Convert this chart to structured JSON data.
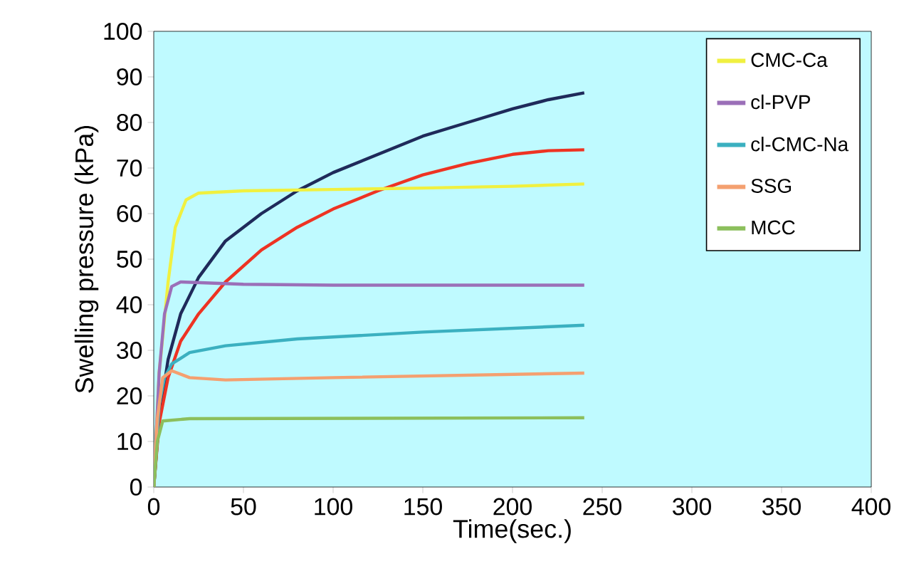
{
  "chart_data": {
    "type": "line",
    "xlabel": "Time(sec.)",
    "ylabel": "Swelling pressure (kPa)",
    "xlim": [
      0,
      400
    ],
    "ylim": [
      0,
      100
    ],
    "xticks": [
      0,
      50,
      100,
      150,
      200,
      250,
      300,
      350,
      400
    ],
    "yticks": [
      0,
      10,
      20,
      30,
      40,
      50,
      60,
      70,
      80,
      90,
      100
    ],
    "legend": "top right",
    "marker": "none",
    "line_style": "solid",
    "series": [
      {
        "color": "#1f2a5a",
        "x": [
          0,
          3,
          8,
          15,
          25,
          40,
          60,
          80,
          100,
          125,
          150,
          175,
          200,
          220,
          240
        ],
        "values": [
          0,
          15,
          28,
          38,
          46,
          54,
          60,
          65,
          69,
          73,
          77,
          80,
          83,
          85,
          86.5
        ]
      },
      {
        "color": "#ee3323",
        "x": [
          0,
          3,
          8,
          15,
          25,
          40,
          60,
          80,
          100,
          125,
          150,
          175,
          200,
          220,
          240
        ],
        "values": [
          0,
          14,
          24,
          32,
          38,
          45,
          52,
          57,
          61,
          65,
          68.5,
          71,
          73,
          73.8,
          74
        ]
      },
      {
        "name": "CMC-Ca",
        "color": "#f0f040",
        "x": [
          0,
          3,
          8,
          12,
          18,
          25,
          50,
          100,
          150,
          200,
          240
        ],
        "values": [
          0,
          25,
          45,
          57,
          63,
          64.5,
          65,
          65.3,
          65.6,
          66,
          66.5
        ]
      },
      {
        "name": "cl-PVP",
        "color": "#9b6fb8",
        "x": [
          0,
          3,
          6,
          10,
          15,
          50,
          100,
          240
        ],
        "values": [
          0,
          25,
          38,
          44,
          45,
          44.5,
          44.3,
          44.3
        ]
      },
      {
        "name": "cl-CMC-Na",
        "color": "#3bb0c0",
        "x": [
          0,
          3,
          6,
          10,
          20,
          40,
          80,
          150,
          240
        ],
        "values": [
          0,
          18,
          24,
          27,
          29.5,
          31,
          32.5,
          34,
          35.5
        ]
      },
      {
        "name": "SSG",
        "color": "#f4a070",
        "x": [
          0,
          2,
          5,
          10,
          20,
          40,
          100,
          240
        ],
        "values": [
          0,
          15,
          24,
          25.5,
          24,
          23.5,
          24,
          25
        ]
      },
      {
        "name": "MCC",
        "color": "#8cbf5c",
        "x": [
          0,
          2,
          5,
          20,
          240
        ],
        "values": [
          0,
          10,
          14.5,
          15,
          15.2
        ]
      }
    ]
  }
}
